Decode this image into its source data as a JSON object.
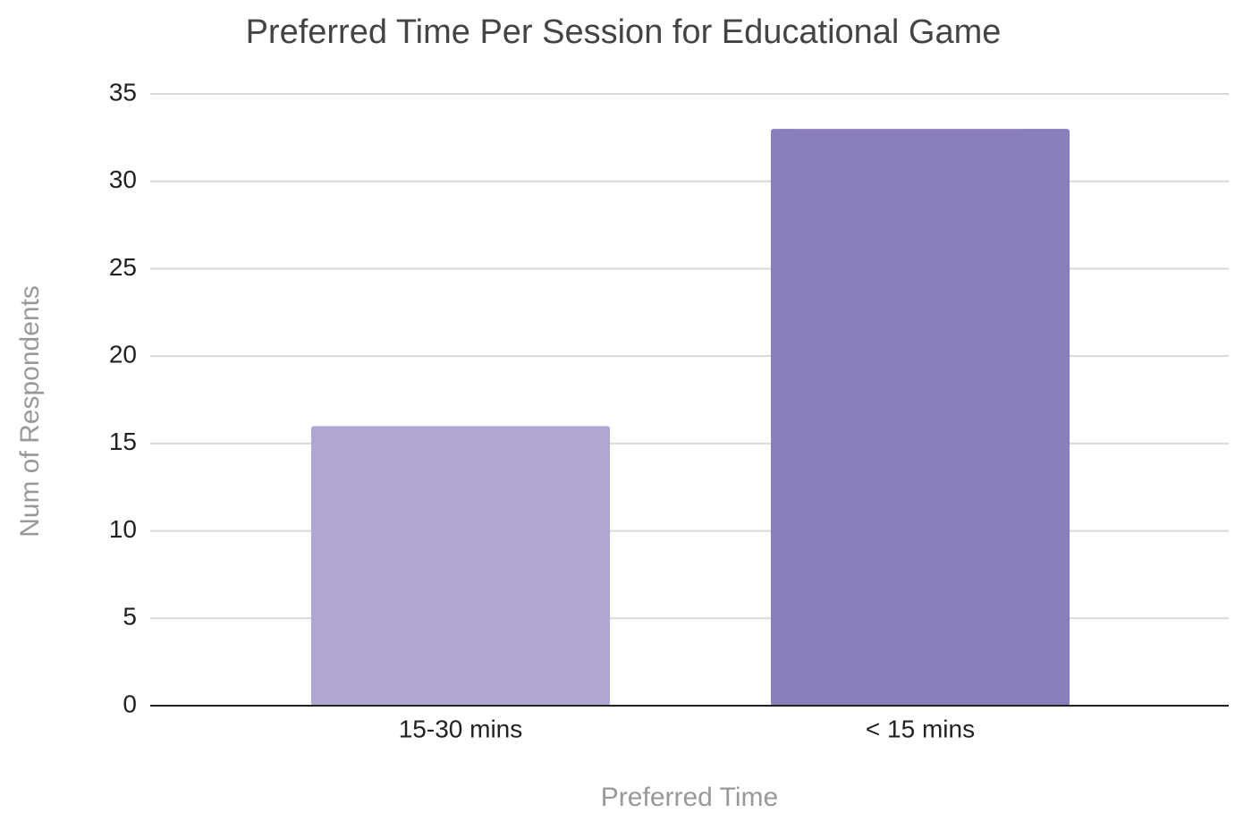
{
  "chart_data": {
    "type": "bar",
    "title": "Preferred Time Per Session for Educational Game",
    "x_label": "Preferred Time",
    "y_label": "Num of Respondents",
    "categories": [
      "15-30 mins",
      "< 15 mins"
    ],
    "values": [
      16,
      33
    ],
    "colors": [
      "#b1a6d2",
      "#8b7ebc"
    ],
    "ylim": [
      0,
      35
    ],
    "yticks": [
      0,
      5,
      10,
      15,
      20,
      25,
      30,
      35
    ],
    "grid": true
  }
}
